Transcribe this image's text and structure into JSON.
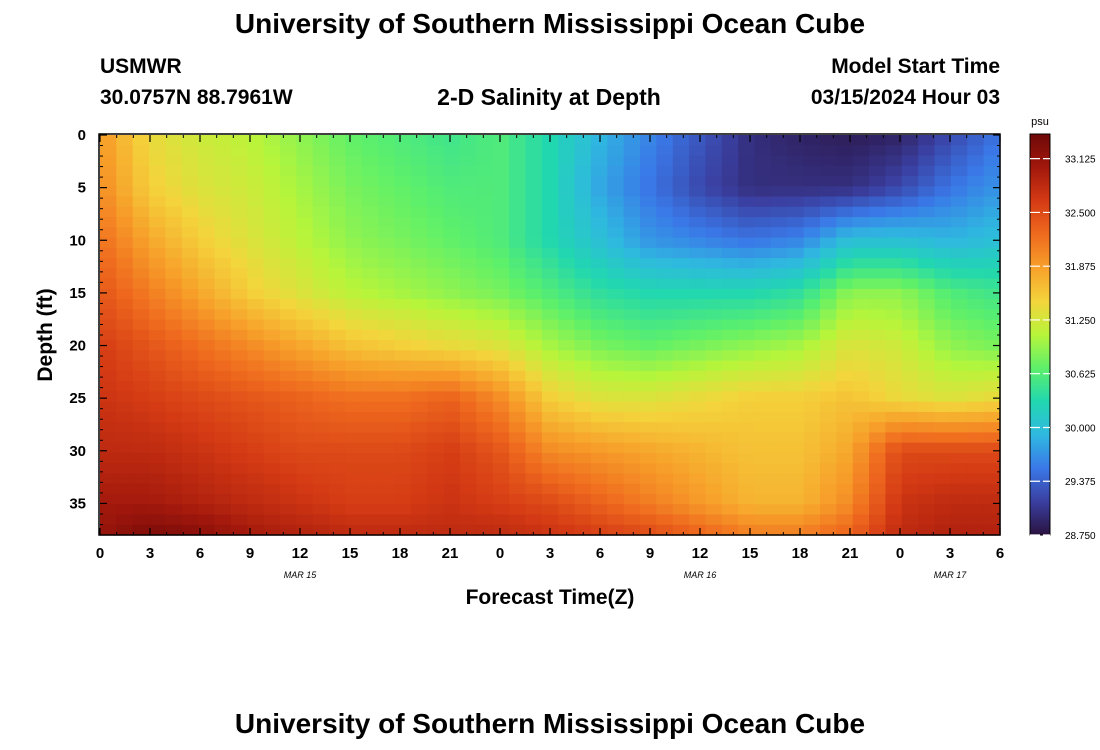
{
  "header": {
    "title": "University of Southern Mississippi Ocean Cube",
    "station_id": "USMWR",
    "coords": "30.0757N  88.7961W",
    "subtitle": "2-D Salinity at Depth",
    "model_label": "Model Start Time",
    "model_time": "03/15/2024 Hour 03"
  },
  "footer": {
    "title": "University of Southern Mississippi Ocean Cube"
  },
  "chart_data": {
    "type": "heatmap",
    "title": "2-D Salinity at Depth",
    "xlabel": "Forecast Time(Z)",
    "ylabel": "Depth (ft)",
    "x_tick_labels": [
      "0",
      "3",
      "6",
      "9",
      "12",
      "15",
      "18",
      "21",
      "0",
      "3",
      "6",
      "9",
      "12",
      "15",
      "18",
      "21",
      "0",
      "3",
      "6"
    ],
    "x_range_hours": [
      0,
      54
    ],
    "date_labels": [
      {
        "label": "MAR 15",
        "hour": 12
      },
      {
        "label": "MAR 16",
        "hour": 36
      },
      {
        "label": "MAR 17",
        "hour": 51
      }
    ],
    "y_ticks": [
      0,
      5,
      10,
      15,
      20,
      25,
      30,
      35
    ],
    "y_range": [
      0,
      38
    ],
    "colorbar": {
      "unit": "psu",
      "min": 28.75,
      "max": 33.4,
      "tick_labels": [
        "33.125",
        "32.500",
        "31.875",
        "31.250",
        "30.625",
        "30.000",
        "29.375",
        "28.750"
      ],
      "stops": [
        "#2a1240",
        "#3a3fa0",
        "#3a78e8",
        "#2fb8e0",
        "#21d7b0",
        "#5ef06a",
        "#b8f53a",
        "#f4d43c",
        "#f7a02a",
        "#ef6a1e",
        "#d43a14",
        "#a2180c",
        "#6e0808"
      ]
    },
    "grid": {
      "nx": 55,
      "ny": 39,
      "salinity_anchor_rows_psu": [
        {
          "depth_ft": 0,
          "values": [
            31.9,
            31.4,
            31.2,
            31.1,
            30.9,
            30.7,
            30.6,
            30.5,
            30.6,
            30.3,
            29.9,
            29.6,
            29.3,
            29.0,
            28.9,
            28.85,
            28.9,
            29.2,
            29.5
          ]
        },
        {
          "depth_ft": 5,
          "values": [
            32.0,
            31.5,
            31.3,
            31.2,
            31.0,
            30.8,
            30.7,
            30.6,
            30.6,
            30.3,
            29.8,
            29.5,
            29.2,
            29.0,
            29.0,
            29.0,
            29.2,
            29.5,
            29.7
          ]
        },
        {
          "depth_ft": 10,
          "values": [
            32.2,
            31.8,
            31.5,
            31.3,
            31.1,
            30.9,
            30.8,
            30.7,
            30.6,
            30.3,
            30.0,
            29.7,
            29.6,
            29.5,
            29.6,
            30.0,
            30.0,
            29.9,
            30.0
          ]
        },
        {
          "depth_ft": 15,
          "values": [
            32.4,
            32.1,
            31.8,
            31.5,
            31.3,
            31.1,
            31.0,
            30.9,
            30.8,
            30.6,
            30.4,
            30.3,
            30.3,
            30.3,
            30.4,
            30.9,
            30.9,
            30.6,
            30.5
          ]
        },
        {
          "depth_ft": 20,
          "values": [
            32.6,
            32.4,
            32.2,
            32.0,
            31.8,
            31.6,
            31.5,
            31.4,
            31.3,
            31.0,
            30.8,
            30.7,
            30.8,
            30.9,
            31.0,
            31.3,
            31.2,
            30.9,
            30.8
          ]
        },
        {
          "depth_ft": 25,
          "values": [
            32.7,
            32.6,
            32.5,
            32.4,
            32.3,
            32.2,
            32.2,
            32.3,
            32.0,
            31.5,
            31.3,
            31.3,
            31.4,
            31.5,
            31.5,
            31.6,
            31.4,
            31.3,
            31.4
          ]
        },
        {
          "depth_ft": 30,
          "values": [
            32.8,
            32.8,
            32.7,
            32.6,
            32.5,
            32.5,
            32.5,
            32.6,
            32.4,
            32.0,
            31.9,
            31.8,
            31.7,
            31.6,
            31.6,
            31.8,
            32.5,
            32.5,
            32.5
          ]
        },
        {
          "depth_ft": 35,
          "values": [
            33.0,
            33.0,
            32.9,
            32.8,
            32.7,
            32.6,
            32.6,
            32.7,
            32.6,
            32.5,
            32.3,
            32.1,
            31.9,
            31.7,
            31.7,
            32.0,
            32.7,
            32.8,
            32.8
          ]
        },
        {
          "depth_ft": 38,
          "values": [
            33.1,
            33.3,
            33.2,
            33.0,
            32.9,
            32.8,
            32.8,
            32.8,
            32.8,
            32.7,
            32.6,
            32.5,
            32.3,
            32.1,
            32.1,
            32.3,
            32.8,
            32.9,
            32.9
          ]
        }
      ]
    }
  }
}
